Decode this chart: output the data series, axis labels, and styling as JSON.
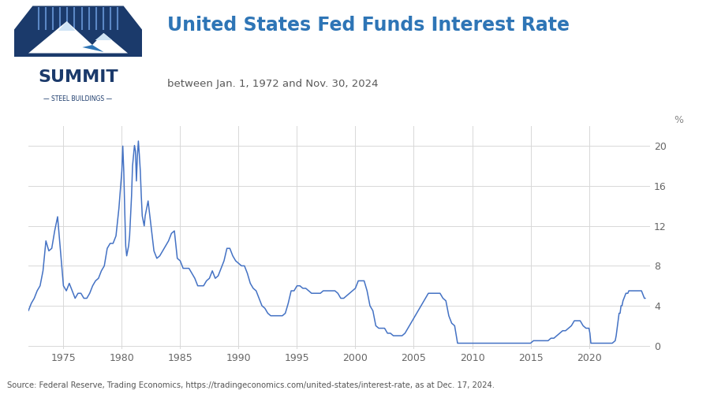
{
  "title": "United States Fed Funds Interest Rate",
  "subtitle": "between Jan. 1, 1972 and Nov. 30, 2024",
  "ylabel": "%",
  "source_text": "Source: Federal Reserve, Trading Economics, https://tradingeconomics.com/united-states/interest-rate, as at Dec. 17, 2024.",
  "line_color": "#4472C4",
  "background_color": "#ffffff",
  "chart_bg_color": "#ffffff",
  "grid_color": "#d8d8d8",
  "title_color": "#2E75B6",
  "subtitle_color": "#595959",
  "ylabel_color": "#888888",
  "source_color": "#555555",
  "logo_dark_blue": "#1B3A6B",
  "logo_mid_blue": "#2E75B6",
  "logo_light_blue": "#4472C4",
  "xlim": [
    1972.0,
    2025.2
  ],
  "ylim": [
    -0.3,
    22
  ],
  "yticks": [
    0,
    4,
    8,
    12,
    16,
    20
  ],
  "xticks": [
    1975,
    1980,
    1985,
    1990,
    1995,
    2000,
    2005,
    2010,
    2015,
    2020
  ],
  "data": [
    [
      1972.0,
      3.5
    ],
    [
      1972.25,
      4.25
    ],
    [
      1972.5,
      4.75
    ],
    [
      1972.75,
      5.5
    ],
    [
      1973.0,
      6.0
    ],
    [
      1973.25,
      7.5
    ],
    [
      1973.5,
      10.5
    ],
    [
      1973.75,
      9.5
    ],
    [
      1974.0,
      9.75
    ],
    [
      1974.25,
      11.5
    ],
    [
      1974.5,
      12.92
    ],
    [
      1974.75,
      9.5
    ],
    [
      1975.0,
      6.0
    ],
    [
      1975.25,
      5.5
    ],
    [
      1975.5,
      6.25
    ],
    [
      1975.75,
      5.5
    ],
    [
      1976.0,
      4.75
    ],
    [
      1976.25,
      5.25
    ],
    [
      1976.5,
      5.25
    ],
    [
      1976.75,
      4.75
    ],
    [
      1977.0,
      4.75
    ],
    [
      1977.25,
      5.25
    ],
    [
      1977.5,
      6.0
    ],
    [
      1977.75,
      6.5
    ],
    [
      1978.0,
      6.75
    ],
    [
      1978.25,
      7.5
    ],
    [
      1978.5,
      8.0
    ],
    [
      1978.75,
      9.75
    ],
    [
      1979.0,
      10.25
    ],
    [
      1979.25,
      10.25
    ],
    [
      1979.5,
      11.0
    ],
    [
      1979.75,
      13.75
    ],
    [
      1980.0,
      17.5
    ],
    [
      1980.083,
      20.0
    ],
    [
      1980.167,
      17.5
    ],
    [
      1980.25,
      13.5
    ],
    [
      1980.333,
      10.0
    ],
    [
      1980.417,
      9.0
    ],
    [
      1980.5,
      9.5
    ],
    [
      1980.583,
      10.0
    ],
    [
      1980.667,
      11.0
    ],
    [
      1980.75,
      13.0
    ],
    [
      1980.833,
      15.0
    ],
    [
      1980.917,
      18.0
    ],
    [
      1981.0,
      19.0
    ],
    [
      1981.083,
      20.06
    ],
    [
      1981.167,
      19.5
    ],
    [
      1981.25,
      16.5
    ],
    [
      1981.333,
      19.0
    ],
    [
      1981.417,
      20.5
    ],
    [
      1981.5,
      19.1
    ],
    [
      1981.583,
      17.5
    ],
    [
      1981.667,
      15.0
    ],
    [
      1981.75,
      13.0
    ],
    [
      1981.917,
      12.0
    ],
    [
      1982.0,
      13.0
    ],
    [
      1982.25,
      14.5
    ],
    [
      1982.5,
      12.0
    ],
    [
      1982.75,
      9.5
    ],
    [
      1983.0,
      8.75
    ],
    [
      1983.25,
      9.0
    ],
    [
      1983.5,
      9.5
    ],
    [
      1983.75,
      10.0
    ],
    [
      1984.0,
      10.5
    ],
    [
      1984.25,
      11.25
    ],
    [
      1984.5,
      11.5
    ],
    [
      1984.75,
      8.75
    ],
    [
      1985.0,
      8.5
    ],
    [
      1985.25,
      7.75
    ],
    [
      1985.5,
      7.75
    ],
    [
      1985.75,
      7.75
    ],
    [
      1986.0,
      7.25
    ],
    [
      1986.25,
      6.75
    ],
    [
      1986.5,
      6.0
    ],
    [
      1986.75,
      6.0
    ],
    [
      1987.0,
      6.0
    ],
    [
      1987.25,
      6.5
    ],
    [
      1987.5,
      6.75
    ],
    [
      1987.75,
      7.5
    ],
    [
      1988.0,
      6.75
    ],
    [
      1988.25,
      7.0
    ],
    [
      1988.5,
      7.75
    ],
    [
      1988.75,
      8.5
    ],
    [
      1989.0,
      9.75
    ],
    [
      1989.25,
      9.75
    ],
    [
      1989.5,
      9.0
    ],
    [
      1989.75,
      8.5
    ],
    [
      1990.0,
      8.25
    ],
    [
      1990.25,
      8.0
    ],
    [
      1990.5,
      8.0
    ],
    [
      1990.75,
      7.25
    ],
    [
      1991.0,
      6.25
    ],
    [
      1991.25,
      5.75
    ],
    [
      1991.5,
      5.5
    ],
    [
      1991.75,
      4.75
    ],
    [
      1992.0,
      4.0
    ],
    [
      1992.25,
      3.75
    ],
    [
      1992.5,
      3.25
    ],
    [
      1992.75,
      3.0
    ],
    [
      1993.0,
      3.0
    ],
    [
      1993.25,
      3.0
    ],
    [
      1993.5,
      3.0
    ],
    [
      1993.75,
      3.0
    ],
    [
      1994.0,
      3.25
    ],
    [
      1994.25,
      4.25
    ],
    [
      1994.5,
      5.5
    ],
    [
      1994.75,
      5.5
    ],
    [
      1995.0,
      6.0
    ],
    [
      1995.25,
      6.0
    ],
    [
      1995.5,
      5.75
    ],
    [
      1995.75,
      5.75
    ],
    [
      1996.0,
      5.5
    ],
    [
      1996.25,
      5.25
    ],
    [
      1996.5,
      5.25
    ],
    [
      1996.75,
      5.25
    ],
    [
      1997.0,
      5.25
    ],
    [
      1997.25,
      5.5
    ],
    [
      1997.5,
      5.5
    ],
    [
      1997.75,
      5.5
    ],
    [
      1998.0,
      5.5
    ],
    [
      1998.25,
      5.5
    ],
    [
      1998.5,
      5.25
    ],
    [
      1998.75,
      4.75
    ],
    [
      1999.0,
      4.75
    ],
    [
      1999.25,
      5.0
    ],
    [
      1999.5,
      5.25
    ],
    [
      1999.75,
      5.5
    ],
    [
      2000.0,
      5.75
    ],
    [
      2000.25,
      6.5
    ],
    [
      2000.5,
      6.5
    ],
    [
      2000.75,
      6.5
    ],
    [
      2001.0,
      5.5
    ],
    [
      2001.25,
      4.0
    ],
    [
      2001.5,
      3.5
    ],
    [
      2001.75,
      2.0
    ],
    [
      2002.0,
      1.75
    ],
    [
      2002.25,
      1.75
    ],
    [
      2002.5,
      1.75
    ],
    [
      2002.75,
      1.25
    ],
    [
      2003.0,
      1.25
    ],
    [
      2003.25,
      1.0
    ],
    [
      2003.5,
      1.0
    ],
    [
      2003.75,
      1.0
    ],
    [
      2004.0,
      1.0
    ],
    [
      2004.25,
      1.25
    ],
    [
      2004.5,
      1.75
    ],
    [
      2004.75,
      2.25
    ],
    [
      2005.0,
      2.75
    ],
    [
      2005.25,
      3.25
    ],
    [
      2005.5,
      3.75
    ],
    [
      2005.75,
      4.25
    ],
    [
      2006.0,
      4.75
    ],
    [
      2006.25,
      5.25
    ],
    [
      2006.5,
      5.25
    ],
    [
      2006.75,
      5.25
    ],
    [
      2007.0,
      5.25
    ],
    [
      2007.25,
      5.25
    ],
    [
      2007.5,
      4.75
    ],
    [
      2007.75,
      4.5
    ],
    [
      2008.0,
      3.0
    ],
    [
      2008.25,
      2.25
    ],
    [
      2008.5,
      2.0
    ],
    [
      2008.75,
      0.25
    ],
    [
      2009.0,
      0.25
    ],
    [
      2009.25,
      0.25
    ],
    [
      2009.5,
      0.25
    ],
    [
      2009.75,
      0.25
    ],
    [
      2010.0,
      0.25
    ],
    [
      2010.25,
      0.25
    ],
    [
      2010.5,
      0.25
    ],
    [
      2010.75,
      0.25
    ],
    [
      2011.0,
      0.25
    ],
    [
      2011.25,
      0.25
    ],
    [
      2011.5,
      0.25
    ],
    [
      2011.75,
      0.25
    ],
    [
      2012.0,
      0.25
    ],
    [
      2012.25,
      0.25
    ],
    [
      2012.5,
      0.25
    ],
    [
      2012.75,
      0.25
    ],
    [
      2013.0,
      0.25
    ],
    [
      2013.25,
      0.25
    ],
    [
      2013.5,
      0.25
    ],
    [
      2013.75,
      0.25
    ],
    [
      2014.0,
      0.25
    ],
    [
      2014.25,
      0.25
    ],
    [
      2014.5,
      0.25
    ],
    [
      2014.75,
      0.25
    ],
    [
      2015.0,
      0.25
    ],
    [
      2015.25,
      0.5
    ],
    [
      2015.5,
      0.5
    ],
    [
      2015.75,
      0.5
    ],
    [
      2016.0,
      0.5
    ],
    [
      2016.25,
      0.5
    ],
    [
      2016.5,
      0.5
    ],
    [
      2016.75,
      0.75
    ],
    [
      2017.0,
      0.75
    ],
    [
      2017.25,
      1.0
    ],
    [
      2017.5,
      1.25
    ],
    [
      2017.75,
      1.5
    ],
    [
      2018.0,
      1.5
    ],
    [
      2018.25,
      1.75
    ],
    [
      2018.5,
      2.0
    ],
    [
      2018.75,
      2.5
    ],
    [
      2019.0,
      2.5
    ],
    [
      2019.25,
      2.5
    ],
    [
      2019.5,
      2.0
    ],
    [
      2019.75,
      1.75
    ],
    [
      2020.0,
      1.75
    ],
    [
      2020.083,
      1.25
    ],
    [
      2020.167,
      0.25
    ],
    [
      2020.25,
      0.25
    ],
    [
      2020.5,
      0.25
    ],
    [
      2020.75,
      0.25
    ],
    [
      2021.0,
      0.25
    ],
    [
      2021.25,
      0.25
    ],
    [
      2021.5,
      0.25
    ],
    [
      2021.75,
      0.25
    ],
    [
      2022.0,
      0.25
    ],
    [
      2022.25,
      0.5
    ],
    [
      2022.333,
      1.0
    ],
    [
      2022.417,
      1.75
    ],
    [
      2022.5,
      2.5
    ],
    [
      2022.583,
      3.25
    ],
    [
      2022.667,
      3.25
    ],
    [
      2022.75,
      4.0
    ],
    [
      2022.833,
      4.0
    ],
    [
      2022.917,
      4.5
    ],
    [
      2023.0,
      4.75
    ],
    [
      2023.083,
      5.0
    ],
    [
      2023.167,
      5.25
    ],
    [
      2023.25,
      5.25
    ],
    [
      2023.333,
      5.25
    ],
    [
      2023.417,
      5.5
    ],
    [
      2023.5,
      5.5
    ],
    [
      2023.583,
      5.5
    ],
    [
      2023.667,
      5.5
    ],
    [
      2023.75,
      5.5
    ],
    [
      2023.833,
      5.5
    ],
    [
      2023.917,
      5.5
    ],
    [
      2024.0,
      5.5
    ],
    [
      2024.083,
      5.5
    ],
    [
      2024.167,
      5.5
    ],
    [
      2024.25,
      5.5
    ],
    [
      2024.333,
      5.5
    ],
    [
      2024.417,
      5.5
    ],
    [
      2024.5,
      5.5
    ],
    [
      2024.583,
      5.25
    ],
    [
      2024.667,
      5.0
    ],
    [
      2024.75,
      4.75
    ],
    [
      2024.833,
      4.75
    ]
  ]
}
